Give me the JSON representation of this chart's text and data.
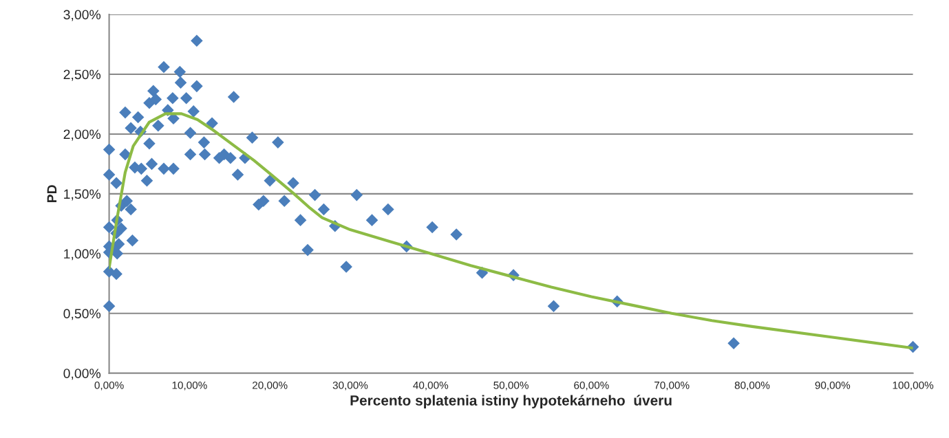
{
  "chart_data": {
    "type": "scatter",
    "xlabel": "Percento splatenia istiny hypotekárneho  úveru",
    "ylabel": "PD",
    "xlim": [
      0,
      100
    ],
    "ylim": [
      0,
      3
    ],
    "xticks": [
      {
        "value": 0,
        "label": "0,00%"
      },
      {
        "value": 10,
        "label": "10,00%"
      },
      {
        "value": 20,
        "label": "20,00%"
      },
      {
        "value": 30,
        "label": "30,00%"
      },
      {
        "value": 40,
        "label": "40,00%"
      },
      {
        "value": 50,
        "label": "50,00%"
      },
      {
        "value": 60,
        "label": "60,00%"
      },
      {
        "value": 70,
        "label": "70,00%"
      },
      {
        "value": 80,
        "label": "80,00%"
      },
      {
        "value": 90,
        "label": "90,00%"
      },
      {
        "value": 100,
        "label": "100,00%"
      }
    ],
    "yticks": [
      {
        "value": 0,
        "label": "0,00%"
      },
      {
        "value": 0.5,
        "label": "0,50%"
      },
      {
        "value": 1,
        "label": "1,00%"
      },
      {
        "value": 1.5,
        "label": "1,50%"
      },
      {
        "value": 2,
        "label": "2,00%"
      },
      {
        "value": 2.5,
        "label": "2,50%"
      },
      {
        "value": 3,
        "label": "3,00%"
      }
    ],
    "grid": "y",
    "legend": false,
    "series": [
      {
        "marker": "diamond",
        "color": "#4a7ebb",
        "x": [
          0,
          0,
          0,
          0,
          0,
          0,
          0,
          0.9,
          0.9,
          1.0,
          0.9,
          1.0,
          1.2,
          0.5,
          1.5,
          1.5,
          2.0,
          2.0,
          2.2,
          2.7,
          2.9,
          2.7,
          3.2,
          3.6,
          3.9,
          4.0,
          4.7,
          5.0,
          5.0,
          5.3,
          5.5,
          5.8,
          6.1,
          6.8,
          6.8,
          7.3,
          7.9,
          8.0,
          8.0,
          8.8,
          8.9,
          9.6,
          10.1,
          10.1,
          10.5,
          10.9,
          10.9,
          11.8,
          11.9,
          12.8,
          13.7,
          14.3,
          15.1,
          15.5,
          16.0,
          16.9,
          17.8,
          18.6,
          19.2,
          20.0,
          21.0,
          21.8,
          22.9,
          23.8,
          24.7,
          25.6,
          26.7,
          28.1,
          29.5,
          30.8,
          32.7,
          34.7,
          37.0,
          40.2,
          43.2,
          46.4,
          50.3,
          55.3,
          63.2,
          77.7,
          100
        ],
        "values": [
          1.87,
          1.66,
          1.22,
          1.06,
          1.01,
          0.85,
          0.56,
          1.59,
          0.83,
          1.0,
          1.17,
          1.28,
          1.08,
          1.04,
          1.21,
          1.4,
          2.18,
          1.83,
          1.44,
          1.37,
          1.11,
          2.05,
          1.72,
          2.14,
          2.02,
          1.71,
          1.61,
          2.26,
          1.92,
          1.75,
          2.36,
          2.29,
          2.07,
          2.56,
          1.71,
          2.2,
          2.3,
          2.13,
          1.71,
          2.52,
          2.43,
          2.3,
          2.01,
          1.83,
          2.19,
          2.78,
          2.4,
          1.93,
          1.83,
          2.09,
          1.8,
          1.83,
          1.8,
          2.31,
          1.66,
          1.8,
          1.97,
          1.41,
          1.44,
          1.61,
          1.93,
          1.44,
          1.59,
          1.28,
          1.03,
          1.49,
          1.37,
          1.23,
          0.89,
          1.49,
          1.28,
          1.37,
          1.06,
          1.22,
          1.16,
          0.84,
          0.82,
          0.56,
          0.6,
          0.25,
          0.22
        ]
      },
      {
        "type": "line",
        "marker": "none",
        "line_style": "solid",
        "color": "#8dbb45",
        "x": [
          0,
          1,
          2,
          3,
          5,
          7,
          9,
          11,
          13,
          15,
          18,
          20,
          23,
          25,
          26.5,
          30,
          35,
          40,
          45,
          50,
          55,
          60,
          65,
          70,
          75,
          80,
          90,
          100
        ],
        "values": [
          0.88,
          1.3,
          1.68,
          1.9,
          2.1,
          2.17,
          2.17,
          2.12,
          2.03,
          1.93,
          1.78,
          1.67,
          1.5,
          1.38,
          1.3,
          1.2,
          1.1,
          1.0,
          0.9,
          0.81,
          0.72,
          0.64,
          0.57,
          0.5,
          0.44,
          0.39,
          0.3,
          0.21
        ]
      }
    ]
  }
}
